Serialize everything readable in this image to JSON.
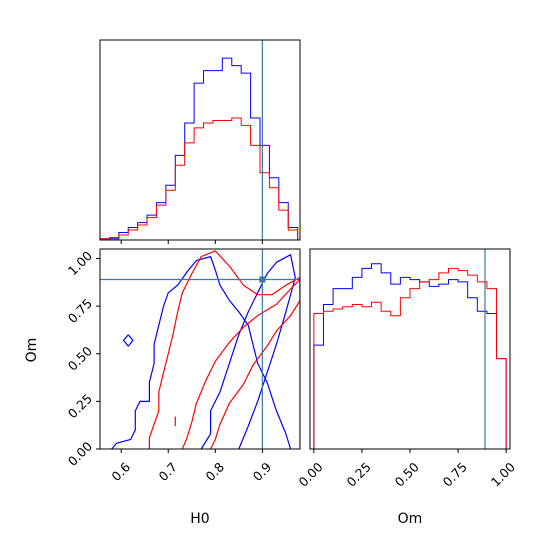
{
  "chart_data": {
    "type": "corner",
    "parameters": [
      "H0",
      "Om"
    ],
    "truth": {
      "H0": 0.9,
      "Om": 0.89
    },
    "truth_color": "#3a78a8",
    "series_colors": [
      "#0000ff",
      "#ff0000"
    ],
    "panels": {
      "hist_H0": {
        "type": "step-histogram",
        "xlim": [
          0.555,
          0.98
        ],
        "xticks": [
          0.6,
          0.7,
          0.8,
          0.9
        ],
        "bins": [
          0.555,
          0.575,
          0.595,
          0.615,
          0.635,
          0.655,
          0.675,
          0.695,
          0.715,
          0.735,
          0.755,
          0.775,
          0.795,
          0.815,
          0.835,
          0.855,
          0.875,
          0.895,
          0.915,
          0.935,
          0.955,
          0.975
        ],
        "series": [
          {
            "counts": [
              0.5,
              0.5,
              3,
              5,
              7,
              10,
              15,
              22,
              34,
              47,
              63,
              68,
              68,
              73,
              70,
              67,
              49,
              38,
              25,
              15,
              5
            ]
          },
          {
            "counts": [
              0.5,
              1,
              2,
              4,
              6,
              9,
              14,
              20,
              30,
              39,
              45,
              47,
              48,
              48,
              49,
              46,
              38,
              27,
              21,
              12,
              4
            ]
          }
        ]
      },
      "hist_Om": {
        "type": "step-histogram",
        "xlim": [
          -0.02,
          1.02
        ],
        "xticks": [
          0.0,
          0.25,
          0.5,
          0.75,
          1.0
        ],
        "xtick_labels": [
          "0.00",
          "0.25",
          "0.50",
          "0.75",
          "1.00"
        ],
        "bins": [
          0.0,
          0.05,
          0.1,
          0.15,
          0.2,
          0.25,
          0.3,
          0.35,
          0.4,
          0.45,
          0.5,
          0.55,
          0.6,
          0.65,
          0.7,
          0.75,
          0.8,
          0.85,
          0.9,
          0.95,
          1.0
        ],
        "series": [
          {
            "counts": [
              46,
              64,
              71,
              71,
              76,
              80,
              82,
              78,
              73,
              76,
              75,
              74,
              72,
              73,
              75,
              74,
              67,
              61,
              60,
              40
            ]
          },
          {
            "counts": [
              60,
              61,
              62,
              63,
              64,
              63,
              65,
              61,
              59,
              67,
              71,
              74,
              75,
              78,
              80,
              79,
              77,
              74,
              71,
              40
            ]
          }
        ]
      },
      "contour": {
        "type": "contour",
        "xlabel": "H0",
        "ylabel": "Om",
        "xlim": [
          0.555,
          0.98
        ],
        "ylim": [
          0.0,
          1.05
        ],
        "xticks": [
          0.6,
          0.7,
          0.8,
          0.9
        ],
        "yticks": [
          0.0,
          0.25,
          0.5,
          0.75,
          1.0
        ],
        "ytick_labels": [
          "0.00",
          "0.25",
          "0.50",
          "0.75",
          "1.00"
        ],
        "series": [
          {
            "contours": [
              [
                [
                  0.58,
                  0.0
                ],
                [
                  0.59,
                  0.03
                ],
                [
                  0.62,
                  0.05
                ],
                [
                  0.63,
                  0.1
                ],
                [
                  0.63,
                  0.2
                ],
                [
                  0.64,
                  0.25
                ],
                [
                  0.66,
                  0.25
                ],
                [
                  0.66,
                  0.35
                ],
                [
                  0.67,
                  0.45
                ],
                [
                  0.67,
                  0.55
                ],
                [
                  0.68,
                  0.65
                ],
                [
                  0.69,
                  0.75
                ],
                [
                  0.7,
                  0.82
                ],
                [
                  0.72,
                  0.86
                ],
                [
                  0.74,
                  0.93
                ],
                [
                  0.76,
                  0.99
                ],
                [
                  0.79,
                  1.01
                ],
                [
                  0.8,
                  0.94
                ],
                [
                  0.81,
                  0.86
                ],
                [
                  0.83,
                  0.78
                ],
                [
                  0.85,
                  0.72
                ],
                [
                  0.87,
                  0.65
                ],
                [
                  0.88,
                  0.55
                ],
                [
                  0.89,
                  0.45
                ],
                [
                  0.91,
                  0.35
                ],
                [
                  0.93,
                  0.2
                ],
                [
                  0.95,
                  0.08
                ],
                [
                  0.96,
                  0.0
                ]
              ],
              [
                [
                  0.77,
                  0.0
                ],
                [
                  0.79,
                  0.08
                ],
                [
                  0.79,
                  0.2
                ],
                [
                  0.81,
                  0.3
                ],
                [
                  0.83,
                  0.45
                ],
                [
                  0.85,
                  0.6
                ],
                [
                  0.87,
                  0.72
                ],
                [
                  0.89,
                  0.82
                ],
                [
                  0.91,
                  0.92
                ],
                [
                  0.93,
                  0.98
                ],
                [
                  0.96,
                  1.02
                ],
                [
                  0.97,
                  0.9
                ],
                [
                  0.95,
                  0.72
                ],
                [
                  0.93,
                  0.55
                ],
                [
                  0.91,
                  0.4
                ],
                [
                  0.89,
                  0.25
                ],
                [
                  0.87,
                  0.12
                ],
                [
                  0.85,
                  0.0
                ]
              ],
              [
                [
                  0.615,
                  0.6
                ],
                [
                  0.605,
                  0.57
                ],
                [
                  0.615,
                  0.54
                ],
                [
                  0.625,
                  0.57
                ],
                [
                  0.615,
                  0.6
                ]
              ]
            ]
          },
          {
            "contours": [
              [
                [
                  0.66,
                  0.0
                ],
                [
                  0.66,
                  0.06
                ],
                [
                  0.67,
                  0.13
                ],
                [
                  0.68,
                  0.2
                ],
                [
                  0.68,
                  0.3
                ],
                [
                  0.69,
                  0.4
                ],
                [
                  0.7,
                  0.5
                ],
                [
                  0.71,
                  0.6
                ],
                [
                  0.72,
                  0.72
                ],
                [
                  0.73,
                  0.82
                ],
                [
                  0.75,
                  0.92
                ],
                [
                  0.77,
                  1.01
                ],
                [
                  0.8,
                  1.04
                ],
                [
                  0.83,
                  0.96
                ],
                [
                  0.86,
                  0.86
                ],
                [
                  0.89,
                  0.81
                ],
                [
                  0.92,
                  0.81
                ],
                [
                  0.95,
                  0.86
                ],
                [
                  0.98,
                  0.9
                ],
                [
                  0.98,
                  0.0
                ]
              ],
              [
                [
                  0.73,
                  0.0
                ],
                [
                  0.74,
                  0.06
                ],
                [
                  0.75,
                  0.14
                ],
                [
                  0.76,
                  0.24
                ],
                [
                  0.78,
                  0.36
                ],
                [
                  0.8,
                  0.46
                ],
                [
                  0.83,
                  0.56
                ],
                [
                  0.86,
                  0.64
                ],
                [
                  0.89,
                  0.7
                ],
                [
                  0.93,
                  0.76
                ],
                [
                  0.96,
                  0.84
                ],
                [
                  0.98,
                  0.89
                ],
                [
                  0.98,
                  0.78
                ],
                [
                  0.96,
                  0.7
                ],
                [
                  0.93,
                  0.62
                ],
                [
                  0.91,
                  0.54
                ],
                [
                  0.88,
                  0.44
                ],
                [
                  0.86,
                  0.34
                ],
                [
                  0.83,
                  0.24
                ],
                [
                  0.81,
                  0.13
                ],
                [
                  0.8,
                  0.05
                ],
                [
                  0.79,
                  0.0
                ]
              ],
              [
                [
                  0.715,
                  0.17
                ],
                [
                  0.715,
                  0.12
                ]
              ]
            ]
          }
        ]
      }
    }
  }
}
